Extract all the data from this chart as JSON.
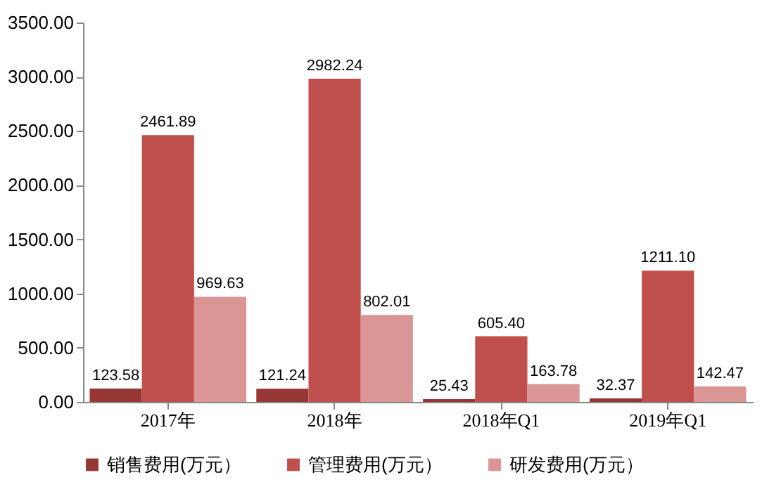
{
  "chart_data": {
    "type": "bar",
    "categories": [
      "2017年",
      "2018年",
      "2018年Q1",
      "2019年Q1"
    ],
    "series": [
      {
        "name": "销售费用(万元）",
        "color": "#953735",
        "values": [
          123.58,
          121.24,
          25.43,
          32.37
        ],
        "value_labels": [
          "123.58",
          "121.24",
          "25.43",
          "32.37"
        ]
      },
      {
        "name": "管理费用(万元）",
        "color": "#c0504d",
        "values": [
          2461.89,
          2982.24,
          605.4,
          1211.1
        ],
        "value_labels": [
          "2461.89",
          "2982.24",
          "605.40",
          "1211.10"
        ]
      },
      {
        "name": "研发费用(万元）",
        "color": "#d99694",
        "values": [
          969.63,
          802.01,
          163.78,
          142.47
        ],
        "value_labels": [
          "969.63",
          "802.01",
          "163.78",
          "142.47"
        ]
      }
    ],
    "ylim": [
      0,
      3500
    ],
    "yticks": [
      {
        "value": 0,
        "label": "0.00"
      },
      {
        "value": 500,
        "label": "500.00"
      },
      {
        "value": 1000,
        "label": "1000.00"
      },
      {
        "value": 1500,
        "label": "1500.00"
      },
      {
        "value": 2000,
        "label": "2000.00"
      },
      {
        "value": 2500,
        "label": "2500.00"
      },
      {
        "value": 3000,
        "label": "3000.00"
      },
      {
        "value": 3500,
        "label": "3500.00"
      }
    ],
    "grid": false,
    "legend": "bottom"
  }
}
